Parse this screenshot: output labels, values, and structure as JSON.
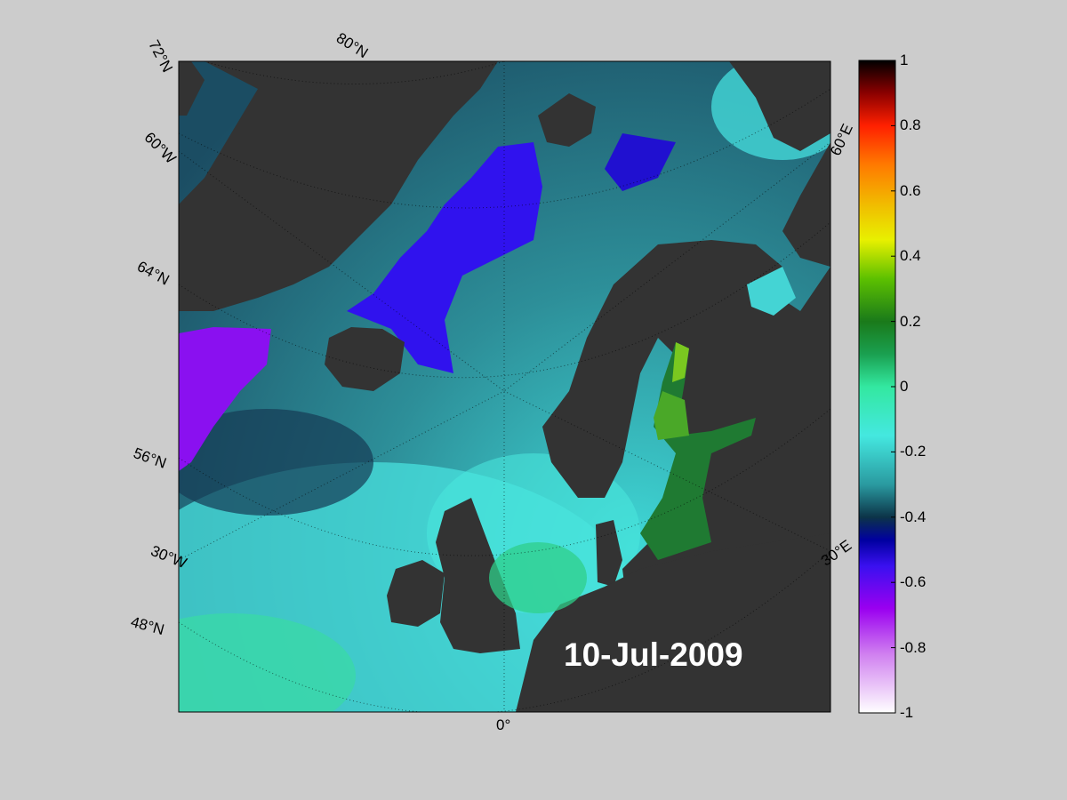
{
  "map": {
    "date_label": "10-Jul-2009",
    "lon_labels": {
      "lon_0": "0°",
      "lon_30w": "30°W",
      "lon_60w": "60°W",
      "lon_30e": "30°E",
      "lon_60e": "60°E"
    },
    "lat_labels": {
      "lat_72n": "72°N",
      "lat_80n": "80°N",
      "lat_64n": "64°N",
      "lat_56n": "56°N",
      "lat_48n": "48°N"
    },
    "colors": {
      "land": "#333333",
      "background": "#cccccc",
      "ice": "#8a8a8a"
    }
  },
  "colorbar": {
    "min": -1,
    "max": 1,
    "ticks": [
      "1",
      "0.8",
      "0.6",
      "0.4",
      "0.2",
      "0",
      "-0.2",
      "-0.4",
      "-0.6",
      "-0.8",
      "-1"
    ],
    "stops": [
      {
        "v": 1.0,
        "c": "#000000"
      },
      {
        "v": 0.9,
        "c": "#8b0000"
      },
      {
        "v": 0.8,
        "c": "#ff2000"
      },
      {
        "v": 0.68,
        "c": "#ff7a00"
      },
      {
        "v": 0.55,
        "c": "#f0c000"
      },
      {
        "v": 0.45,
        "c": "#e8f000"
      },
      {
        "v": 0.33,
        "c": "#5cc000"
      },
      {
        "v": 0.2,
        "c": "#1a7a1a"
      },
      {
        "v": 0.1,
        "c": "#1aa050"
      },
      {
        "v": 0.0,
        "c": "#33e8a0"
      },
      {
        "v": -0.15,
        "c": "#44e8e0"
      },
      {
        "v": -0.3,
        "c": "#2a9aa0"
      },
      {
        "v": -0.4,
        "c": "#0c3448"
      },
      {
        "v": -0.47,
        "c": "#0000a0"
      },
      {
        "v": -0.55,
        "c": "#3a10f0"
      },
      {
        "v": -0.68,
        "c": "#9a00f0"
      },
      {
        "v": -0.82,
        "c": "#d080f0"
      },
      {
        "v": -1.0,
        "c": "#ffffff"
      }
    ]
  }
}
